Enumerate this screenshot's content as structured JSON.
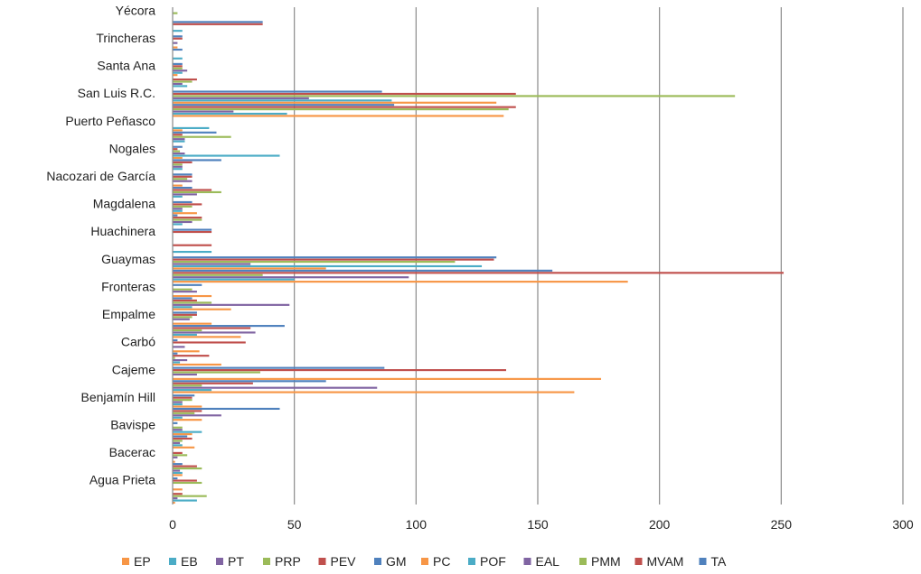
{
  "chart_data": {
    "type": "bar",
    "orientation": "horizontal",
    "categories": [
      "Agua Prieta",
      "Bacerac",
      "Bavispe",
      "Benjamín Hill",
      "Cajeme",
      "Carbó",
      "Empalme",
      "Fronteras",
      "Guaymas",
      "Huachinera",
      "Magdalena",
      "Nacozari de García",
      "Nogales",
      "Puerto Peñasco",
      "San Luis R.C.",
      "Santa Ana",
      "Trincheras",
      "Yécora"
    ],
    "xlim": [
      0,
      300
    ],
    "xticks": [
      0,
      50,
      100,
      150,
      200,
      250,
      300
    ],
    "grid": "vertical",
    "legend_position": "bottom",
    "series": [
      {
        "name": "EP",
        "color": "#F79646",
        "values": [
          1,
          4,
          9,
          12,
          165,
          20,
          28,
          24,
          187,
          0,
          0,
          0,
          0,
          0,
          136,
          0,
          0,
          0
        ]
      },
      {
        "name": "EB",
        "color": "#4BACC6",
        "values": [
          10,
          4,
          4,
          4,
          16,
          3,
          10,
          8,
          50,
          16,
          4,
          4,
          4,
          5,
          47,
          6,
          4,
          4
        ]
      },
      {
        "name": "PT",
        "color": "#8064A2",
        "values": [
          2,
          3,
          3,
          20,
          84,
          6,
          34,
          48,
          97,
          0,
          8,
          10,
          4,
          5,
          25,
          4,
          0,
          0
        ]
      },
      {
        "name": "PRP",
        "color": "#9BBB59",
        "values": [
          14,
          12,
          4,
          9,
          12,
          1,
          12,
          16,
          37,
          0,
          12,
          20,
          4,
          24,
          138,
          8,
          0,
          0
        ]
      },
      {
        "name": "PEV",
        "color": "#C0504D",
        "values": [
          4,
          10,
          8,
          12,
          33,
          15,
          32,
          10,
          251,
          16,
          12,
          16,
          8,
          4,
          141,
          10,
          0,
          37
        ]
      },
      {
        "name": "GM",
        "color": "#4F81BD",
        "values": [
          0,
          4,
          6,
          44,
          63,
          2,
          46,
          8,
          156,
          0,
          2,
          8,
          20,
          18,
          91,
          0,
          4,
          37
        ]
      },
      {
        "name": "PC",
        "color": "#F79646",
        "values": [
          4,
          1,
          8,
          12,
          176,
          11,
          16,
          16,
          63,
          0,
          10,
          4,
          4,
          4,
          133,
          2,
          2,
          0
        ]
      },
      {
        "name": "POF",
        "color": "#4BACC6",
        "values": [
          0,
          0,
          12,
          4,
          0,
          0,
          0,
          0,
          127,
          0,
          4,
          0,
          44,
          15,
          90,
          4,
          0,
          0
        ]
      },
      {
        "name": "EAL",
        "color": "#8064A2",
        "values": [
          0,
          2,
          4,
          4,
          10,
          5,
          7,
          10,
          32,
          0,
          4,
          8,
          5,
          0,
          56,
          6,
          2,
          0
        ]
      },
      {
        "name": "PMM",
        "color": "#9BBB59",
        "values": [
          12,
          6,
          4,
          8,
          36,
          0,
          8,
          8,
          116,
          0,
          8,
          6,
          3,
          0,
          231,
          4,
          0,
          2
        ]
      },
      {
        "name": "MVAM",
        "color": "#C0504D",
        "values": [
          10,
          4,
          0,
          8,
          137,
          30,
          10,
          0,
          132,
          16,
          12,
          8,
          2,
          0,
          141,
          4,
          4,
          0
        ]
      },
      {
        "name": "TA",
        "color": "#4F81BD",
        "values": [
          2,
          0,
          2,
          9,
          87,
          2,
          10,
          12,
          133,
          16,
          8,
          8,
          4,
          0,
          86,
          4,
          4,
          0
        ]
      }
    ]
  }
}
